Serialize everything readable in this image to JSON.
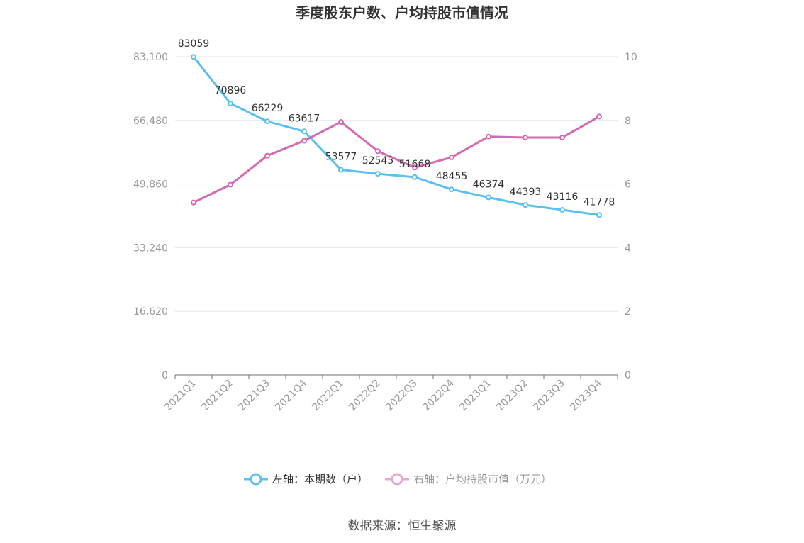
{
  "chart_data": {
    "type": "line",
    "title": "季度股东户数、户均持股市值情况",
    "categories": [
      "2021Q1",
      "2021Q2",
      "2021Q3",
      "2021Q4",
      "2022Q1",
      "2022Q2",
      "2022Q3",
      "2022Q4",
      "2023Q1",
      "2023Q2",
      "2023Q3",
      "2023Q4"
    ],
    "series": [
      {
        "name": "左轴：本期数（户）",
        "axis": "left",
        "color": "#5bc0f0",
        "values": [
          83059,
          70896,
          66229,
          63617,
          53577,
          52545,
          51668,
          48455,
          46374,
          44393,
          43116,
          41778
        ],
        "data_labels": [
          "83059",
          "70896",
          "66229",
          "63617",
          "53577",
          "52545",
          "51668",
          "48455",
          "46374",
          "44393",
          "43116",
          "41778"
        ]
      },
      {
        "name": "右轴：户均持股市值（万元）",
        "axis": "right",
        "color": "#d36bb0",
        "values": [
          5.42,
          5.98,
          6.89,
          7.36,
          7.95,
          7.03,
          6.52,
          6.84,
          7.49,
          7.46,
          7.46,
          8.12
        ]
      }
    ],
    "y_left": {
      "ticks": [
        0,
        16620,
        33240,
        49860,
        66480,
        83100
      ],
      "tick_labels": [
        "0",
        "16,620",
        "33,240",
        "49,860",
        "66,480",
        "83,100"
      ],
      "ylim": [
        0,
        83100
      ]
    },
    "y_right": {
      "ticks": [
        0,
        2,
        4,
        6,
        8,
        10
      ],
      "tick_labels": [
        "0",
        "2",
        "4",
        "6",
        "8",
        "10"
      ],
      "ylim": [
        0,
        10
      ]
    },
    "grid": true,
    "legend_position": "bottom-center"
  },
  "source_text": "数据来源：恒生聚源"
}
